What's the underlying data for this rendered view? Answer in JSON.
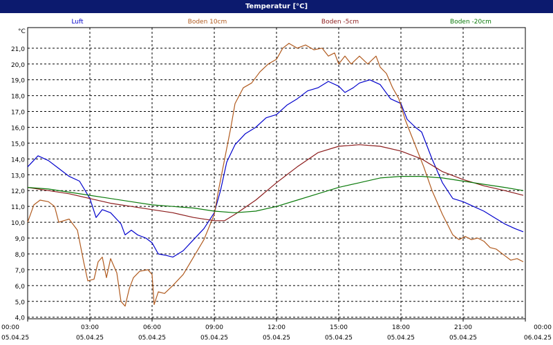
{
  "window": {
    "title": "Temperatur [°C]"
  },
  "chart_data": {
    "type": "line",
    "title": "Temperatur [°C]",
    "ylabel": "°C",
    "ylim": [
      3.9,
      22.3
    ],
    "xlim": [
      0,
      24
    ],
    "grid": true,
    "legend_position": "top",
    "y_ticks": [
      "4,0",
      "5,0",
      "6,0",
      "7,0",
      "8,0",
      "9,0",
      "10,0",
      "11,0",
      "12,0",
      "13,0",
      "14,0",
      "15,0",
      "16,0",
      "17,0",
      "18,0",
      "19,0",
      "20,0",
      "21,0"
    ],
    "x_ticks": [
      {
        "x": 0,
        "time": "00:00",
        "date": "05.04.25"
      },
      {
        "x": 3,
        "time": "03:00",
        "date": "05.04.25"
      },
      {
        "x": 6,
        "time": "06:00",
        "date": "05.04.25"
      },
      {
        "x": 9,
        "time": "09:00",
        "date": "05.04.25"
      },
      {
        "x": 12,
        "time": "12:00",
        "date": "05.04.25"
      },
      {
        "x": 15,
        "time": "15:00",
        "date": "05.04.25"
      },
      {
        "x": 18,
        "time": "18:00",
        "date": "05.04.25"
      },
      {
        "x": 21,
        "time": "21:00",
        "date": "05.04.25"
      },
      {
        "x": 24,
        "time": "00:00",
        "date": "06.04.25"
      }
    ],
    "series": [
      {
        "name": "Luft",
        "color": "#0000cc",
        "points": [
          [
            0,
            13.5
          ],
          [
            0.5,
            14.2
          ],
          [
            1,
            13.9
          ],
          [
            1.5,
            13.4
          ],
          [
            2,
            12.9
          ],
          [
            2.5,
            12.6
          ],
          [
            3,
            11.5
          ],
          [
            3.3,
            10.3
          ],
          [
            3.6,
            10.8
          ],
          [
            4,
            10.6
          ],
          [
            4.5,
            9.9
          ],
          [
            4.7,
            9.2
          ],
          [
            5,
            9.5
          ],
          [
            5.3,
            9.2
          ],
          [
            5.7,
            9.0
          ],
          [
            6,
            8.7
          ],
          [
            6.3,
            8.0
          ],
          [
            6.7,
            7.9
          ],
          [
            7,
            7.8
          ],
          [
            7.5,
            8.2
          ],
          [
            8,
            8.9
          ],
          [
            8.5,
            9.6
          ],
          [
            9,
            10.6
          ],
          [
            9.3,
            12.0
          ],
          [
            9.6,
            13.8
          ],
          [
            10,
            14.9
          ],
          [
            10.5,
            15.6
          ],
          [
            11,
            16.0
          ],
          [
            11.5,
            16.6
          ],
          [
            12,
            16.8
          ],
          [
            12.5,
            17.4
          ],
          [
            13,
            17.8
          ],
          [
            13.5,
            18.3
          ],
          [
            14,
            18.5
          ],
          [
            14.5,
            18.9
          ],
          [
            15,
            18.6
          ],
          [
            15.3,
            18.2
          ],
          [
            15.7,
            18.5
          ],
          [
            16,
            18.8
          ],
          [
            16.5,
            19.0
          ],
          [
            17,
            18.7
          ],
          [
            17.5,
            17.8
          ],
          [
            18,
            17.5
          ],
          [
            18.3,
            16.5
          ],
          [
            18.7,
            16.0
          ],
          [
            19,
            15.7
          ],
          [
            19.5,
            14.0
          ],
          [
            20,
            12.5
          ],
          [
            20.5,
            11.5
          ],
          [
            21,
            11.3
          ],
          [
            21.5,
            11.0
          ],
          [
            22,
            10.7
          ],
          [
            22.5,
            10.3
          ],
          [
            23,
            9.9
          ],
          [
            23.5,
            9.6
          ],
          [
            23.9,
            9.4
          ]
        ]
      },
      {
        "name": "Boden 10cm",
        "color": "#b05a1e",
        "points": [
          [
            0,
            10.0
          ],
          [
            0.3,
            11.1
          ],
          [
            0.6,
            11.4
          ],
          [
            1,
            11.3
          ],
          [
            1.3,
            11.0
          ],
          [
            1.5,
            10.0
          ],
          [
            2,
            10.2
          ],
          [
            2.4,
            9.5
          ],
          [
            2.7,
            7.5
          ],
          [
            2.9,
            6.3
          ],
          [
            3.2,
            6.4
          ],
          [
            3.4,
            7.5
          ],
          [
            3.6,
            7.8
          ],
          [
            3.8,
            6.5
          ],
          [
            4,
            7.7
          ],
          [
            4.3,
            6.8
          ],
          [
            4.5,
            5.0
          ],
          [
            4.7,
            4.7
          ],
          [
            4.9,
            5.8
          ],
          [
            5.1,
            6.5
          ],
          [
            5.4,
            6.9
          ],
          [
            5.8,
            7.0
          ],
          [
            6,
            6.7
          ],
          [
            6.1,
            4.8
          ],
          [
            6.3,
            5.6
          ],
          [
            6.6,
            5.5
          ],
          [
            7,
            6.0
          ],
          [
            7.5,
            6.7
          ],
          [
            8,
            7.8
          ],
          [
            8.5,
            8.9
          ],
          [
            9,
            10.5
          ],
          [
            9.2,
            12.0
          ],
          [
            9.5,
            14.0
          ],
          [
            9.8,
            16.0
          ],
          [
            10,
            17.5
          ],
          [
            10.4,
            18.5
          ],
          [
            10.8,
            18.8
          ],
          [
            11.2,
            19.5
          ],
          [
            11.6,
            20.0
          ],
          [
            12,
            20.3
          ],
          [
            12.3,
            21.0
          ],
          [
            12.6,
            21.3
          ],
          [
            13,
            21.0
          ],
          [
            13.4,
            21.2
          ],
          [
            13.8,
            20.9
          ],
          [
            14.2,
            21.0
          ],
          [
            14.5,
            20.5
          ],
          [
            14.8,
            20.7
          ],
          [
            15,
            20.0
          ],
          [
            15.3,
            20.5
          ],
          [
            15.6,
            20.0
          ],
          [
            16,
            20.5
          ],
          [
            16.4,
            20.0
          ],
          [
            16.8,
            20.5
          ],
          [
            17,
            19.8
          ],
          [
            17.3,
            19.4
          ],
          [
            17.6,
            18.5
          ],
          [
            17.9,
            17.8
          ],
          [
            18.2,
            16.5
          ],
          [
            18.5,
            15.5
          ],
          [
            18.8,
            14.5
          ],
          [
            19.1,
            13.5
          ],
          [
            19.5,
            12.0
          ],
          [
            20,
            10.5
          ],
          [
            20.5,
            9.2
          ],
          [
            20.8,
            8.9
          ],
          [
            21.1,
            9.1
          ],
          [
            21.4,
            8.9
          ],
          [
            21.7,
            9.0
          ],
          [
            22,
            8.8
          ],
          [
            22.3,
            8.4
          ],
          [
            22.6,
            8.3
          ],
          [
            23,
            7.9
          ],
          [
            23.3,
            7.6
          ],
          [
            23.6,
            7.7
          ],
          [
            23.9,
            7.5
          ]
        ]
      },
      {
        "name": "Boden -5cm",
        "color": "#8b1a1a",
        "points": [
          [
            0,
            12.2
          ],
          [
            1,
            12.0
          ],
          [
            2,
            11.8
          ],
          [
            3,
            11.5
          ],
          [
            4,
            11.2
          ],
          [
            5,
            11.0
          ],
          [
            6,
            10.8
          ],
          [
            7,
            10.6
          ],
          [
            8,
            10.3
          ],
          [
            9,
            10.1
          ],
          [
            9.5,
            10.1
          ],
          [
            10,
            10.5
          ],
          [
            11,
            11.4
          ],
          [
            12,
            12.5
          ],
          [
            13,
            13.5
          ],
          [
            14,
            14.4
          ],
          [
            15,
            14.8
          ],
          [
            16,
            14.9
          ],
          [
            17,
            14.8
          ],
          [
            18,
            14.5
          ],
          [
            19,
            14.0
          ],
          [
            20,
            13.2
          ],
          [
            21,
            12.7
          ],
          [
            22,
            12.3
          ],
          [
            23,
            12.0
          ],
          [
            23.9,
            11.7
          ]
        ]
      },
      {
        "name": "Boden -20cm",
        "color": "#0a7a0a",
        "points": [
          [
            0,
            12.2
          ],
          [
            1,
            12.1
          ],
          [
            2,
            11.9
          ],
          [
            3,
            11.7
          ],
          [
            4,
            11.5
          ],
          [
            5,
            11.3
          ],
          [
            6,
            11.1
          ],
          [
            7,
            11.0
          ],
          [
            8,
            10.9
          ],
          [
            9,
            10.7
          ],
          [
            10,
            10.6
          ],
          [
            11,
            10.7
          ],
          [
            12,
            11.0
          ],
          [
            13,
            11.4
          ],
          [
            14,
            11.8
          ],
          [
            15,
            12.2
          ],
          [
            16,
            12.5
          ],
          [
            17,
            12.8
          ],
          [
            18,
            12.9
          ],
          [
            19,
            12.9
          ],
          [
            20,
            12.8
          ],
          [
            21,
            12.6
          ],
          [
            22,
            12.4
          ],
          [
            23,
            12.2
          ],
          [
            23.9,
            12.0
          ]
        ]
      }
    ]
  }
}
